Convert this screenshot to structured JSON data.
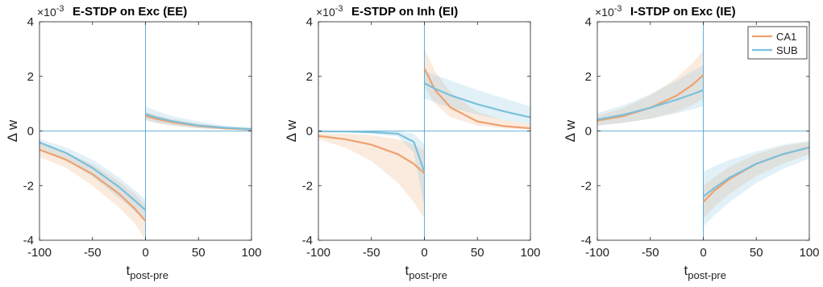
{
  "colors": {
    "CA1": "#eda26f",
    "SUB": "#7cc0dc",
    "axis_line": "#3a9bd0"
  },
  "legend": {
    "placement": "top-right",
    "entries": [
      "CA1",
      "SUB"
    ]
  },
  "chart_data": [
    {
      "type": "line",
      "title": "E-STDP on Exc (EE)",
      "exponent_label": "×10",
      "exponent": "-3",
      "xlabel_main": "t",
      "xlabel_sub": "post-pre",
      "ylabel": "Δ w",
      "xlim": [
        -100,
        100
      ],
      "ylim": [
        -4,
        4
      ],
      "xticks": [
        -100,
        -50,
        0,
        50,
        100
      ],
      "yticks": [
        -4,
        -2,
        0,
        2,
        4
      ],
      "legend": false,
      "series": [
        {
          "name": "CA1",
          "neg": {
            "x": [
              -100,
              -75,
              -50,
              -25,
              -10,
              0
            ],
            "y": [
              -0.68,
              -1.05,
              -1.58,
              -2.3,
              -2.85,
              -3.3
            ],
            "lo": [
              -0.95,
              -1.35,
              -2.0,
              -2.8,
              -3.4,
              -4.0
            ],
            "hi": [
              -0.45,
              -0.78,
              -1.22,
              -1.85,
              -2.3,
              -2.7
            ]
          },
          "pos": {
            "x": [
              0,
              10,
              25,
              50,
              75,
              100
            ],
            "y": [
              0.55,
              0.44,
              0.32,
              0.18,
              0.1,
              0.05
            ],
            "lo": [
              0.4,
              0.3,
              0.2,
              0.1,
              0.05,
              0.02
            ],
            "hi": [
              0.7,
              0.58,
              0.44,
              0.27,
              0.15,
              0.08
            ]
          }
        },
        {
          "name": "SUB",
          "neg": {
            "x": [
              -100,
              -75,
              -50,
              -25,
              -10,
              0
            ],
            "y": [
              -0.42,
              -0.8,
              -1.35,
              -2.05,
              -2.55,
              -2.9
            ],
            "lo": [
              -0.6,
              -1.05,
              -1.68,
              -2.45,
              -2.95,
              -3.3
            ],
            "hi": [
              -0.3,
              -0.6,
              -1.05,
              -1.7,
              -2.18,
              -2.5
            ]
          },
          "pos": {
            "x": [
              0,
              10,
              25,
              50,
              75,
              100
            ],
            "y": [
              0.62,
              0.5,
              0.36,
              0.2,
              0.12,
              0.07
            ],
            "lo": [
              0.4,
              0.3,
              0.2,
              0.1,
              0.05,
              0.02
            ],
            "hi": [
              0.9,
              0.75,
              0.55,
              0.35,
              0.2,
              0.12
            ]
          }
        }
      ]
    },
    {
      "type": "line",
      "title": "E-STDP on Inh (EI)",
      "exponent_label": "×10",
      "exponent": "-3",
      "xlabel_main": "t",
      "xlabel_sub": "post-pre",
      "ylabel": "Δ w",
      "xlim": [
        -100,
        100
      ],
      "ylim": [
        -4,
        4
      ],
      "xticks": [
        -100,
        -50,
        0,
        50,
        100
      ],
      "yticks": [
        -4,
        -2,
        0,
        2,
        4
      ],
      "legend": false,
      "series": [
        {
          "name": "CA1",
          "neg": {
            "x": [
              -100,
              -75,
              -50,
              -25,
              -10,
              0
            ],
            "y": [
              -0.18,
              -0.3,
              -0.5,
              -0.85,
              -1.2,
              -1.55
            ],
            "lo": [
              -0.3,
              -0.6,
              -1.1,
              -1.9,
              -2.6,
              -3.2
            ],
            "hi": [
              -0.08,
              -0.1,
              -0.15,
              -0.3,
              -0.5,
              -0.7
            ]
          },
          "pos": {
            "x": [
              0,
              10,
              25,
              50,
              75,
              100
            ],
            "y": [
              2.3,
              1.5,
              0.85,
              0.35,
              0.18,
              0.1
            ],
            "lo": [
              1.6,
              1.0,
              0.5,
              0.2,
              0.1,
              0.05
            ],
            "hi": [
              3.0,
              2.2,
              1.4,
              0.7,
              0.4,
              0.25
            ]
          }
        },
        {
          "name": "SUB",
          "neg": {
            "x": [
              -100,
              -75,
              -50,
              -25,
              -10,
              0
            ],
            "y": [
              -0.01,
              -0.02,
              -0.04,
              -0.1,
              -0.4,
              -1.5
            ],
            "lo": [
              -0.05,
              -0.05,
              -0.1,
              -0.2,
              -0.8,
              -2.8
            ],
            "hi": [
              0.0,
              0.0,
              0.0,
              0.0,
              -0.1,
              -0.5
            ]
          },
          "pos": {
            "x": [
              0,
              10,
              25,
              50,
              75,
              100
            ],
            "y": [
              1.75,
              1.55,
              1.3,
              0.98,
              0.72,
              0.5
            ],
            "lo": [
              1.2,
              1.05,
              0.85,
              0.6,
              0.4,
              0.25
            ],
            "hi": [
              2.2,
              2.05,
              1.85,
              1.5,
              1.2,
              0.9
            ]
          }
        }
      ]
    },
    {
      "type": "line",
      "title": "I-STDP on Exc (IE)",
      "exponent_label": "×10",
      "exponent": "-3",
      "xlabel_main": "t",
      "xlabel_sub": "post-pre",
      "ylabel": "Δ w",
      "xlim": [
        -100,
        100
      ],
      "ylim": [
        -4,
        4
      ],
      "xticks": [
        -100,
        -50,
        0,
        50,
        100
      ],
      "yticks": [
        -4,
        -2,
        0,
        2,
        4
      ],
      "legend": true,
      "series": [
        {
          "name": "CA1",
          "neg": {
            "x": [
              -100,
              -75,
              -50,
              -25,
              -10,
              0
            ],
            "y": [
              0.38,
              0.55,
              0.85,
              1.3,
              1.7,
              2.05
            ],
            "lo": [
              0.2,
              0.3,
              0.45,
              0.7,
              0.95,
              1.2
            ],
            "hi": [
              0.55,
              0.85,
              1.3,
              1.95,
              2.5,
              2.95
            ]
          },
          "pos": {
            "x": [
              0,
              10,
              25,
              50,
              75,
              100
            ],
            "y": [
              -2.6,
              -2.2,
              -1.75,
              -1.2,
              -0.85,
              -0.6
            ],
            "lo": [
              -3.2,
              -2.8,
              -2.3,
              -1.65,
              -1.2,
              -0.85
            ],
            "hi": [
              -2.0,
              -1.7,
              -1.3,
              -0.85,
              -0.55,
              -0.4
            ]
          }
        },
        {
          "name": "SUB",
          "neg": {
            "x": [
              -100,
              -75,
              -50,
              -25,
              -10,
              0
            ],
            "y": [
              0.42,
              0.6,
              0.85,
              1.15,
              1.35,
              1.5
            ],
            "lo": [
              0.2,
              0.3,
              0.45,
              0.65,
              0.8,
              0.9
            ],
            "hi": [
              0.65,
              0.95,
              1.35,
              1.85,
              2.2,
              2.4
            ]
          },
          "pos": {
            "x": [
              0,
              10,
              25,
              50,
              75,
              100
            ],
            "y": [
              -2.4,
              -2.1,
              -1.7,
              -1.2,
              -0.85,
              -0.6
            ],
            "lo": [
              -3.5,
              -3.1,
              -2.6,
              -1.9,
              -1.4,
              -1.0
            ],
            "hi": [
              -1.5,
              -1.3,
              -1.05,
              -0.75,
              -0.5,
              -0.35
            ]
          }
        }
      ]
    }
  ]
}
